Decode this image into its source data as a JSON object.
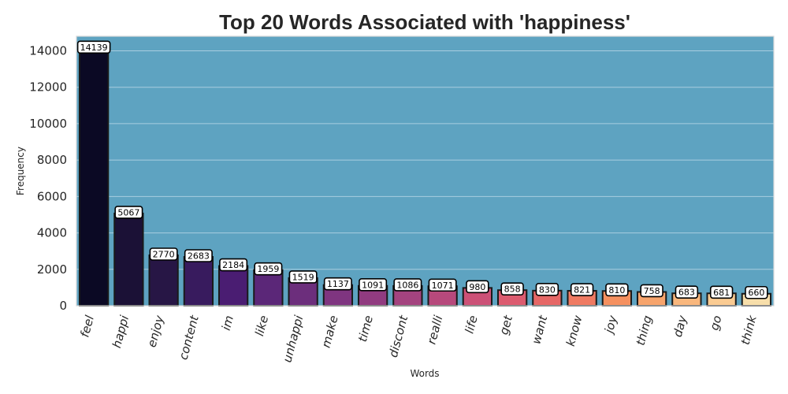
{
  "chart_data": {
    "type": "bar",
    "title": "Top 20 Words Associated with 'happiness'",
    "xlabel": "Words",
    "ylabel": "Frequency",
    "categories": [
      "feel",
      "happi",
      "enjoy",
      "content",
      "im",
      "like",
      "unhappi",
      "make",
      "time",
      "discont",
      "realli",
      "life",
      "get",
      "want",
      "know",
      "joy",
      "thing",
      "day",
      "go",
      "think"
    ],
    "values": [
      14139,
      5067,
      2770,
      2683,
      2184,
      1959,
      1519,
      1137,
      1091,
      1086,
      1071,
      980,
      858,
      830,
      821,
      810,
      758,
      683,
      681,
      660
    ],
    "ylim": [
      0,
      14800
    ],
    "yticks": [
      0,
      2000,
      4000,
      6000,
      8000,
      10000,
      12000,
      14000
    ],
    "grid": true,
    "legend": "none",
    "palette": "magma",
    "bar_colors": [
      "#0b0924",
      "#1b1136",
      "#271645",
      "#381b5e",
      "#4a1d72",
      "#5b2778",
      "#6c2e7c",
      "#7f3580",
      "#913b80",
      "#a4437f",
      "#b7497c",
      "#cc5177",
      "#dc5b6f",
      "#e66766",
      "#ef7a62",
      "#f5905f",
      "#f7a46c",
      "#f9b77d",
      "#facb92",
      "#f7deaa"
    ],
    "plot_background": "#5ea3c1",
    "grid_color": "#a9cde0"
  }
}
